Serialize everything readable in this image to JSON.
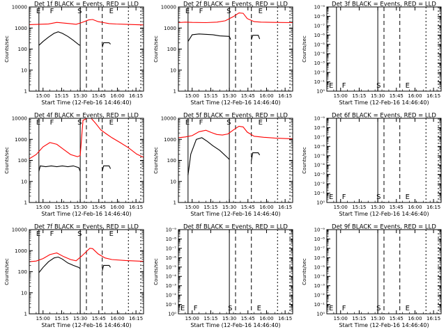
{
  "figure": {
    "x_ticks": [
      "15:00",
      "15:15",
      "15:30",
      "15:45",
      "16:00",
      "16:15"
    ],
    "x_label": "Start Time (12-Feb-16 14:46:40)",
    "y_label": "Counts/sec"
  },
  "chart_data": [
    {
      "type": "line",
      "title": "Det 1f BLACK = Events, RED = LLD",
      "y_scale": "log",
      "y_ticks": [
        "1",
        "10",
        "100",
        "1000",
        "10000"
      ],
      "letters": [
        "E",
        "F",
        "S",
        "E"
      ],
      "series": [
        {
          "color": "#ff0000",
          "segments": [
            [
              [
                0,
                1450
              ],
              [
                7,
                1500
              ],
              [
                14,
                1560
              ],
              [
                20,
                1850
              ],
              [
                26,
                1700
              ],
              [
                30,
                1600
              ],
              [
                34,
                1500
              ],
              [
                38,
                1800
              ],
              [
                43,
                2400
              ],
              [
                46,
                2550
              ],
              [
                50,
                2000
              ],
              [
                54,
                1800
              ],
              [
                58,
                1620
              ],
              [
                63,
                1550
              ],
              [
                70,
                1500
              ],
              [
                77,
                1450
              ],
              [
                83,
                1400
              ]
            ]
          ]
        },
        {
          "color": "#000000",
          "segments": [
            [
              [
                7,
                150
              ],
              [
                10,
                230
              ],
              [
                14,
                370
              ],
              [
                18,
                560
              ],
              [
                21,
                660
              ],
              [
                24,
                560
              ],
              [
                28,
                400
              ],
              [
                32,
                260
              ],
              [
                36,
                160
              ],
              [
                37,
                150
              ]
            ],
            [
              [
                53,
                120
              ],
              [
                54,
                200
              ],
              [
                58,
                200
              ],
              [
                59,
                170
              ]
            ]
          ]
        }
      ]
    },
    {
      "type": "line",
      "title": "Det 2f BLACK = Events, RED = LLD",
      "y_scale": "log",
      "y_ticks": [
        "1",
        "10",
        "100",
        "1000",
        "10000"
      ],
      "letters": [
        "E",
        "F",
        "S",
        "E"
      ],
      "series": [
        {
          "color": "#ff0000",
          "segments": [
            [
              [
                0,
                1800
              ],
              [
                5,
                1900
              ],
              [
                10,
                1850
              ],
              [
                20,
                1800
              ],
              [
                28,
                1900
              ],
              [
                34,
                2200
              ],
              [
                40,
                3500
              ],
              [
                44,
                5200
              ],
              [
                47,
                5000
              ],
              [
                50,
                2800
              ],
              [
                55,
                2000
              ],
              [
                60,
                1900
              ],
              [
                70,
                1850
              ],
              [
                83,
                1800
              ]
            ]
          ]
        },
        {
          "color": "#000000",
          "segments": [
            [
              [
                7,
                230
              ],
              [
                10,
                480
              ],
              [
                15,
                520
              ],
              [
                25,
                480
              ],
              [
                30,
                420
              ],
              [
                37,
                400
              ],
              [
                38,
                280
              ]
            ],
            [
              [
                53,
                280
              ],
              [
                54,
                450
              ],
              [
                58,
                450
              ],
              [
                59,
                300
              ]
            ]
          ]
        }
      ]
    },
    {
      "type": "line",
      "title": "Det 3f BLACK = Events, RED = LLD",
      "y_scale": "log",
      "y_ticks": [
        "10⁰",
        "10⁻¹",
        "10⁻²",
        "10⁻³",
        "10⁻⁴",
        "10⁻⁵",
        "10⁻⁶",
        "10⁻⁷",
        "10⁻⁸",
        "10⁻⁹"
      ],
      "letters": [
        "E",
        "F",
        "S",
        "E"
      ],
      "series": []
    },
    {
      "type": "line",
      "title": "Det 4f BLACK = Events, RED = LLD",
      "y_scale": "log",
      "y_ticks": [
        "1",
        "10",
        "100",
        "1000",
        "10000"
      ],
      "letters": [
        "E",
        "F",
        "S",
        "E"
      ],
      "series": [
        {
          "color": "#ff0000",
          "segments": [
            [
              [
                0,
                120
              ],
              [
                5,
                190
              ],
              [
                10,
                440
              ],
              [
                15,
                700
              ],
              [
                20,
                580
              ],
              [
                25,
                330
              ],
              [
                30,
                190
              ],
              [
                35,
                150
              ],
              [
                37,
                170
              ],
              [
                39,
                8000
              ],
              [
                42,
                10000
              ],
              [
                45,
                10000
              ],
              [
                48,
                6000
              ],
              [
                52,
                2800
              ],
              [
                56,
                1800
              ],
              [
                60,
                1200
              ],
              [
                66,
                700
              ],
              [
                72,
                400
              ],
              [
                78,
                200
              ],
              [
                83,
                140
              ]
            ]
          ]
        },
        {
          "color": "#000000",
          "segments": [
            [
              [
                7,
                30
              ],
              [
                8,
                55
              ],
              [
                12,
                50
              ],
              [
                16,
                55
              ],
              [
                20,
                50
              ],
              [
                24,
                55
              ],
              [
                28,
                50
              ],
              [
                32,
                55
              ],
              [
                36,
                45
              ],
              [
                37,
                30
              ]
            ],
            [
              [
                53,
                30
              ],
              [
                54,
                55
              ],
              [
                58,
                55
              ],
              [
                59,
                40
              ]
            ]
          ]
        }
      ]
    },
    {
      "type": "line",
      "title": "Det 5f BLACK = Events, RED = LLD",
      "y_scale": "log",
      "y_ticks": [
        "1",
        "10",
        "100",
        "1000",
        "10000"
      ],
      "letters": [
        "E",
        "F",
        "S",
        "E"
      ],
      "series": [
        {
          "color": "#ff0000",
          "segments": [
            [
              [
                0,
                1200
              ],
              [
                5,
                1300
              ],
              [
                10,
                1500
              ],
              [
                15,
                2300
              ],
              [
                20,
                2700
              ],
              [
                24,
                2100
              ],
              [
                28,
                1700
              ],
              [
                32,
                1600
              ],
              [
                36,
                1800
              ],
              [
                40,
                2800
              ],
              [
                44,
                4200
              ],
              [
                47,
                3900
              ],
              [
                50,
                2200
              ],
              [
                55,
                1400
              ],
              [
                62,
                1250
              ],
              [
                70,
                1150
              ],
              [
                83,
                1050
              ]
            ]
          ]
        },
        {
          "color": "#000000",
          "segments": [
            [
              [
                7,
                20
              ],
              [
                9,
                200
              ],
              [
                13,
                1000
              ],
              [
                17,
                1200
              ],
              [
                21,
                800
              ],
              [
                25,
                500
              ],
              [
                30,
                300
              ],
              [
                36,
                130
              ],
              [
                37,
                110
              ]
            ],
            [
              [
                53,
                100
              ],
              [
                54,
                230
              ],
              [
                58,
                230
              ],
              [
                59,
                180
              ]
            ]
          ]
        }
      ]
    },
    {
      "type": "line",
      "title": "Det 6f BLACK = Events, RED = LLD",
      "y_scale": "log",
      "y_ticks": [
        "10⁰",
        "10⁻¹",
        "10⁻²",
        "10⁻³",
        "10⁻⁴",
        "10⁻⁵",
        "10⁻⁶",
        "10⁻⁷",
        "10⁻⁸",
        "10⁻⁹"
      ],
      "letters": [
        "E",
        "F",
        "S",
        "E"
      ],
      "series": []
    },
    {
      "type": "line",
      "title": "Det 7f BLACK = Events, RED = LLD",
      "y_scale": "log",
      "y_ticks": [
        "1",
        "10",
        "100",
        "1000",
        "10000"
      ],
      "letters": [
        "E",
        "F",
        "S",
        "E"
      ],
      "series": [
        {
          "color": "#ff0000",
          "segments": [
            [
              [
                0,
                300
              ],
              [
                5,
                320
              ],
              [
                10,
                420
              ],
              [
                15,
                650
              ],
              [
                20,
                780
              ],
              [
                25,
                520
              ],
              [
                30,
                380
              ],
              [
                34,
                330
              ],
              [
                38,
                550
              ],
              [
                44,
                1300
              ],
              [
                46,
                1250
              ],
              [
                50,
                700
              ],
              [
                55,
                450
              ],
              [
                60,
                380
              ],
              [
                70,
                340
              ],
              [
                83,
                310
              ]
            ]
          ]
        },
        {
          "color": "#000000",
          "segments": [
            [
              [
                7,
                90
              ],
              [
                10,
                160
              ],
              [
                14,
                300
              ],
              [
                18,
                450
              ],
              [
                21,
                500
              ],
              [
                24,
                400
              ],
              [
                28,
                260
              ],
              [
                32,
                200
              ],
              [
                36,
                160
              ],
              [
                37,
                140
              ]
            ],
            [
              [
                53,
                110
              ],
              [
                54,
                200
              ],
              [
                58,
                200
              ],
              [
                59,
                160
              ]
            ]
          ]
        }
      ]
    },
    {
      "type": "line",
      "title": "Det 8f BLACK = Events, RED = LLD",
      "y_scale": "log",
      "y_ticks": [
        "10⁰",
        "10⁻¹",
        "10⁻²",
        "10⁻³",
        "10⁻⁴",
        "10⁻⁵",
        "10⁻⁶",
        "10⁻⁷",
        "10⁻⁸",
        "10⁻⁹"
      ],
      "letters": [
        "E",
        "F",
        "S",
        "E"
      ],
      "series": []
    },
    {
      "type": "line",
      "title": "Det 9f BLACK = Events, RED = LLD",
      "y_scale": "log",
      "y_ticks": [
        "10⁰",
        "10⁻¹",
        "10⁻²",
        "10⁻³",
        "10⁻⁴",
        "10⁻⁵",
        "10⁻⁶",
        "10⁻⁷",
        "10⁻⁸",
        "10⁻⁹"
      ],
      "letters": [
        "E",
        "F",
        "S",
        "E"
      ],
      "series": []
    }
  ]
}
